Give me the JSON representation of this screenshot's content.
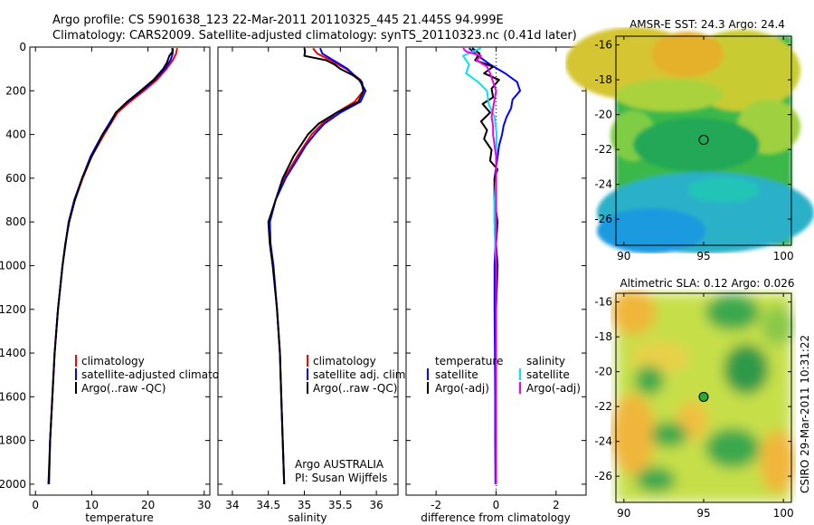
{
  "header": {
    "line1": "Argo profile: CS 5901638_123 22-Mar-2011 20110325_445 21.445S 94.999E",
    "line2": "Climatology: CARS2009. Satellite-adjusted climatology: synTS_20110323.nc (0.41d later)"
  },
  "side_label": "CSIRO 29-Mar-2011 10:31:22",
  "colors": {
    "climatology": "#ff0000",
    "satellite": "#0000ff",
    "argo": "#000000",
    "salinity_satellite": "#00e5ee",
    "salinity_argo": "#ee00ee"
  },
  "chart_data": [
    {
      "type": "line",
      "id": "temperature_profile",
      "xlabel": "temperature",
      "ylabel": "",
      "xlim": [
        -1,
        31
      ],
      "ylim": [
        2050,
        0
      ],
      "x_ticks": [
        0,
        10,
        20,
        30
      ],
      "y_ticks": [
        0,
        200,
        400,
        600,
        800,
        1000,
        1200,
        1400,
        1600,
        1800,
        2000
      ],
      "legend": {
        "position": "lower-right",
        "entries": [
          {
            "label": "climatology",
            "color": "#ff0000"
          },
          {
            "label": "satellite-adjusted climatology",
            "color": "#0000ff"
          },
          {
            "label": "Argo(..raw -QC)",
            "color": "#000000"
          }
        ]
      },
      "series": [
        {
          "name": "climatology",
          "color": "#ff0000",
          "depth": [
            5,
            30,
            60,
            100,
            150,
            200,
            250,
            300,
            400,
            500,
            600,
            700,
            800,
            1000,
            1200,
            1400,
            1600,
            1800,
            2000
          ],
          "values": [
            25.2,
            25.0,
            24.4,
            23.3,
            21.6,
            19.3,
            16.8,
            14.6,
            12.2,
            10.0,
            8.4,
            7.0,
            5.9,
            4.8,
            4.0,
            3.4,
            3.0,
            2.6,
            2.4
          ]
        },
        {
          "name": "satellite-adjusted climatology",
          "color": "#0000ff",
          "depth": [
            5,
            30,
            60,
            100,
            150,
            200,
            250,
            300,
            400,
            500,
            600,
            700,
            800,
            1000,
            1200,
            1400,
            1600,
            1800,
            2000
          ],
          "values": [
            24.3,
            24.4,
            24.0,
            23.0,
            21.2,
            18.9,
            16.4,
            14.3,
            11.9,
            9.8,
            8.3,
            6.9,
            5.9,
            4.8,
            4.0,
            3.4,
            3.0,
            2.6,
            2.3
          ]
        },
        {
          "name": "Argo(..raw -QC)",
          "color": "#000000",
          "depth": [
            5,
            20,
            40,
            70,
            100,
            150,
            200,
            250,
            300,
            350,
            400,
            450,
            500,
            600,
            700,
            800,
            900,
            1000,
            1200,
            1400,
            1600,
            1800,
            2000
          ],
          "values": [
            24.4,
            24.4,
            23.8,
            23.4,
            22.7,
            21.0,
            18.7,
            16.3,
            14.3,
            13.3,
            12.0,
            11.0,
            10.0,
            8.3,
            7.0,
            6.0,
            5.3,
            4.8,
            4.0,
            3.4,
            3.0,
            2.6,
            2.4
          ]
        }
      ]
    },
    {
      "type": "line",
      "id": "salinity_profile",
      "xlabel": "salinity",
      "ylabel": "",
      "xlim": [
        33.8,
        36.3
      ],
      "ylim": [
        2050,
        0
      ],
      "x_ticks": [
        34,
        34.5,
        35,
        35.5,
        36
      ],
      "y_ticks": [
        0,
        200,
        400,
        600,
        800,
        1000,
        1200,
        1400,
        1600,
        1800,
        2000
      ],
      "legend": {
        "position": "lower-right",
        "entries": [
          {
            "label": "climatology",
            "color": "#ff0000"
          },
          {
            "label": "satellite adj. clim.",
            "color": "#0000ff"
          },
          {
            "label": "Argo(..raw -QC)",
            "color": "#000000"
          }
        ]
      },
      "annotations": [
        "Argo AUSTRALIA",
        "PI: Susan Wijffels"
      ],
      "series": [
        {
          "name": "climatology",
          "color": "#ff0000",
          "depth": [
            5,
            30,
            60,
            100,
            150,
            200,
            250,
            300,
            350,
            400,
            450,
            500,
            600,
            700,
            800,
            900,
            1000,
            1200,
            1400,
            1600,
            1800,
            2000
          ],
          "values": [
            35.12,
            35.18,
            35.36,
            35.58,
            35.78,
            35.82,
            35.7,
            35.45,
            35.25,
            35.1,
            35.0,
            34.9,
            34.72,
            34.6,
            34.52,
            34.53,
            34.57,
            34.62,
            34.66,
            34.68,
            34.7,
            34.72
          ]
        },
        {
          "name": "satellite adj. clim.",
          "color": "#0000ff",
          "depth": [
            5,
            30,
            60,
            100,
            150,
            200,
            250,
            300,
            350,
            400,
            450,
            500,
            600,
            700,
            800,
            900,
            1000,
            1200,
            1400,
            1600,
            1800,
            2000
          ],
          "values": [
            35.22,
            35.25,
            35.4,
            35.6,
            35.76,
            35.85,
            35.78,
            35.5,
            35.28,
            35.14,
            35.02,
            34.93,
            34.74,
            34.6,
            34.52,
            34.53,
            34.57,
            34.62,
            34.66,
            34.68,
            34.7,
            34.72
          ]
        },
        {
          "name": "Argo(..raw -QC)",
          "color": "#000000",
          "depth": [
            5,
            20,
            40,
            60,
            80,
            100,
            130,
            160,
            200,
            250,
            300,
            350,
            400,
            450,
            500,
            600,
            700,
            800,
            900,
            1000,
            1200,
            1400,
            1600,
            1800,
            2000
          ],
          "values": [
            35.0,
            35.01,
            35.0,
            35.3,
            35.42,
            35.5,
            35.68,
            35.8,
            35.82,
            35.75,
            35.45,
            35.2,
            35.05,
            34.95,
            34.85,
            34.7,
            34.6,
            34.5,
            34.52,
            34.56,
            34.62,
            34.66,
            34.68,
            34.7,
            34.72
          ]
        }
      ]
    },
    {
      "type": "line",
      "id": "difference_profile",
      "xlabel": "difference from climatology",
      "ylabel": "",
      "xlim": [
        -3,
        3
      ],
      "ylim": [
        2050,
        0
      ],
      "x_ticks": [
        -2,
        0,
        2
      ],
      "y_ticks": [
        0,
        200,
        400,
        600,
        800,
        1000,
        1200,
        1400,
        1600,
        1800,
        2000
      ],
      "legend": {
        "position": "lower-center",
        "groups": [
          {
            "title": "temperature",
            "entries": [
              {
                "label": "satellite",
                "color": "#0000ff"
              },
              {
                "label": "Argo(-adj)",
                "color": "#000000"
              }
            ]
          },
          {
            "title": "salinity",
            "entries": [
              {
                "label": "satellite",
                "color": "#00e5ee"
              },
              {
                "label": "Argo(-adj)",
                "color": "#ee00ee"
              }
            ]
          }
        ]
      },
      "series": [
        {
          "name": "temperature satellite",
          "color": "#0000ff",
          "depth": [
            5,
            40,
            80,
            120,
            160,
            200,
            240,
            280,
            320,
            360,
            400,
            450,
            500,
            550,
            600,
            700,
            800,
            900,
            1000,
            1200,
            1400,
            1600,
            1800,
            2000
          ],
          "values": [
            -0.9,
            -0.6,
            -0.2,
            0.3,
            0.7,
            0.8,
            0.55,
            0.5,
            0.35,
            0.25,
            0.2,
            0.1,
            0.05,
            0.0,
            -0.05,
            -0.05,
            -0.05,
            -0.02,
            -0.05,
            -0.05,
            -0.04,
            -0.03,
            -0.03,
            -0.02
          ]
        },
        {
          "name": "temperature Argo(-adj)",
          "color": "#000000",
          "depth": [
            5,
            30,
            60,
            90,
            120,
            150,
            190,
            230,
            260,
            300,
            340,
            380,
            420,
            470,
            520,
            560,
            600,
            700,
            800,
            900,
            1000,
            1200,
            1400,
            1600,
            1800,
            2000
          ],
          "values": [
            -0.8,
            -0.55,
            -0.7,
            -0.1,
            -0.4,
            0.1,
            -0.15,
            -0.1,
            -0.45,
            -0.2,
            -0.5,
            -0.3,
            -0.4,
            -0.15,
            -0.2,
            0.05,
            -0.05,
            -0.05,
            0.05,
            0.0,
            0.05,
            0.0,
            0.0,
            0.0,
            0.0,
            0.0
          ]
        },
        {
          "name": "salinity satellite",
          "color": "#00e5ee",
          "depth": [
            5,
            40,
            80,
            120,
            160,
            200,
            260,
            320,
            400,
            500,
            600,
            700,
            800,
            900,
            1000,
            1200,
            1400,
            1600,
            1800,
            2000
          ],
          "values": [
            -0.5,
            -1.1,
            -0.9,
            -1.0,
            -0.6,
            -0.3,
            -0.25,
            -0.05,
            0.02,
            0.0,
            0.0,
            -0.05,
            -0.05,
            -0.03,
            0.0,
            0.0,
            0.0,
            0.0,
            0.0,
            0.0
          ]
        },
        {
          "name": "salinity Argo(-adj)",
          "color": "#ee00ee",
          "depth": [
            5,
            20,
            40,
            60,
            90,
            120,
            160,
            200,
            240,
            280,
            320,
            360,
            400,
            450,
            500,
            600,
            700,
            800,
            900,
            1000,
            1200,
            1400,
            1600,
            1800,
            2000
          ],
          "values": [
            -1.1,
            -1.0,
            -0.5,
            -0.65,
            -0.3,
            -0.2,
            -0.1,
            0.0,
            -0.05,
            -0.1,
            -0.15,
            -0.1,
            -0.1,
            -0.05,
            0.0,
            0.0,
            0.0,
            0.0,
            0.0,
            0.0,
            0.0,
            0.0,
            0.0,
            0.0,
            0.0
          ]
        }
      ]
    },
    {
      "type": "heatmap",
      "id": "sst_map",
      "title": "AMSR-E SST: 24.3 Argo: 24.4",
      "xlim": [
        89.5,
        100.5
      ],
      "ylim": [
        -27.5,
        -15.5
      ],
      "x_ticks": [
        90,
        95,
        100
      ],
      "y_ticks": [
        -16,
        -18,
        -20,
        -22,
        -24,
        -26
      ],
      "marker": {
        "lon": 95.0,
        "lat": -21.445,
        "style": "open-circle"
      }
    },
    {
      "type": "heatmap",
      "id": "sla_map",
      "title": "Altimetric SLA: 0.12 Argo: 0.026",
      "xlim": [
        89.5,
        100.5
      ],
      "ylim": [
        -27.5,
        -15.5
      ],
      "x_ticks": [
        90,
        95,
        100
      ],
      "y_ticks": [
        -16,
        -18,
        -20,
        -22,
        -24,
        -26
      ],
      "marker": {
        "lon": 95.0,
        "lat": -21.445,
        "style": "filled-green-circle"
      }
    }
  ]
}
